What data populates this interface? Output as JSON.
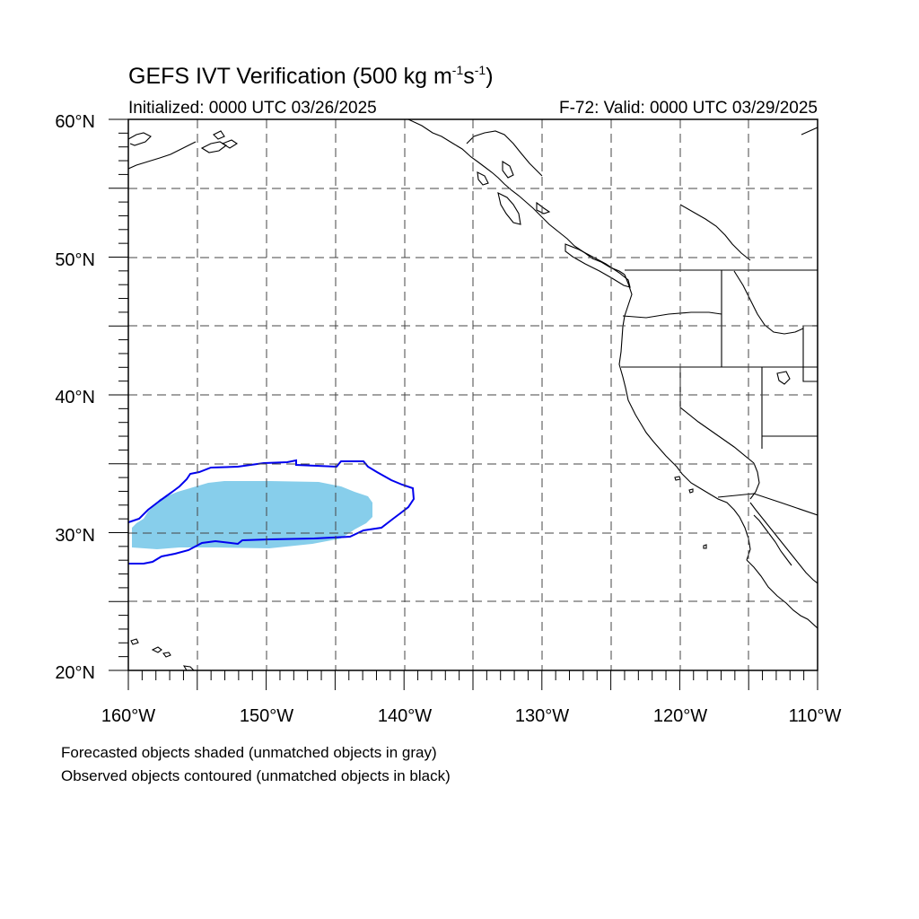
{
  "title": {
    "main": "GEFS IVT Verification (500 kg m",
    "exp1": "-1",
    "mid": "s",
    "exp2": "-1",
    "close": ")"
  },
  "init_text": "Initialized: 0000 UTC 03/26/2025",
  "valid_text": "F-72: Valid: 0000 UTC 03/29/2025",
  "lat_labels": [
    "60°N",
    "50°N",
    "40°N",
    "30°N",
    "20°N"
  ],
  "lon_labels": [
    "160°W",
    "150°W",
    "140°W",
    "130°W",
    "120°W",
    "110°W"
  ],
  "notes": [
    "Forecasted objects shaded (unmatched objects in gray)",
    "Observed objects contoured (unmatched objects in black)"
  ],
  "colors": {
    "forecast_fill": "#87ceeb",
    "observed_contour": "#0000ee",
    "coast": "#000000"
  }
}
